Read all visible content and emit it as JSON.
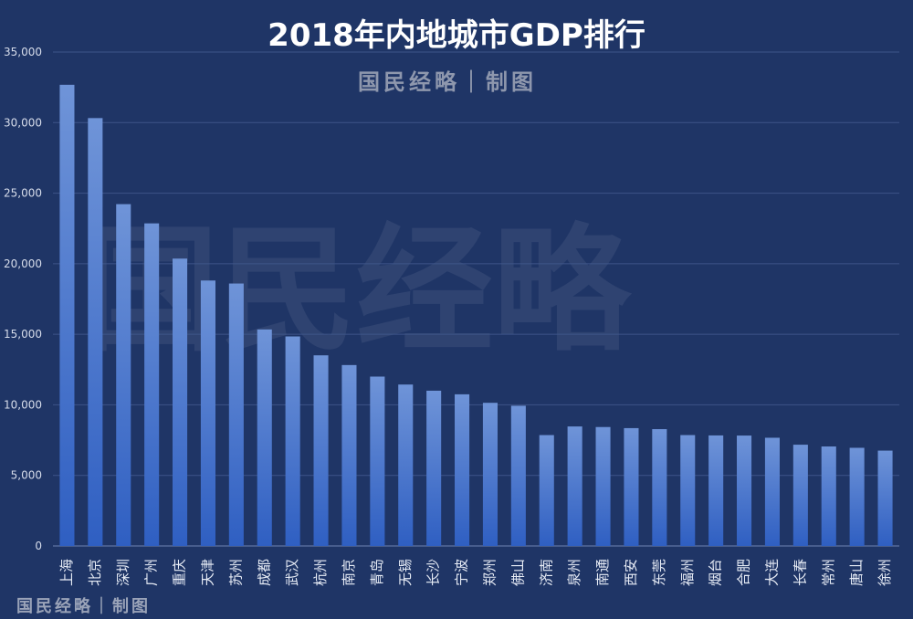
{
  "chart_data": {
    "type": "bar",
    "title": "2018年内地城市GDP排行",
    "subtitle": "国民经略｜制图",
    "watermark": "国民经略",
    "footer": "国民经略｜制图",
    "xlabel": "",
    "ylabel": "",
    "ylim": [
      0,
      35000
    ],
    "yticks": [
      0,
      5000,
      10000,
      15000,
      20000,
      25000,
      30000,
      35000
    ],
    "ytick_labels": [
      "0",
      "5,000",
      "10,000",
      "15,000",
      "20,000",
      "25,000",
      "30,000",
      "35,000"
    ],
    "categories": [
      "上海",
      "北京",
      "深圳",
      "广州",
      "重庆",
      "天津",
      "苏州",
      "成都",
      "武汉",
      "杭州",
      "南京",
      "青岛",
      "无锡",
      "长沙",
      "宁波",
      "郑州",
      "佛山",
      "济南",
      "泉州",
      "南通",
      "西安",
      "东莞",
      "福州",
      "烟台",
      "合肥",
      "大连",
      "长春",
      "常州",
      "唐山",
      "徐州"
    ],
    "values": [
      32680,
      30320,
      24222,
      22859,
      20363,
      18810,
      18597,
      15343,
      14847,
      13509,
      12820,
      12002,
      11439,
      11003,
      10746,
      10143,
      9936,
      7856,
      8468,
      8427,
      8350,
      8279,
      7857,
      7833,
      7823,
      7668,
      7175,
      7050,
      6955,
      6756
    ],
    "colors": {
      "background": "#1f3566",
      "bar_top": "#6f94d8",
      "bar_bottom": "#2f5fc2"
    }
  }
}
